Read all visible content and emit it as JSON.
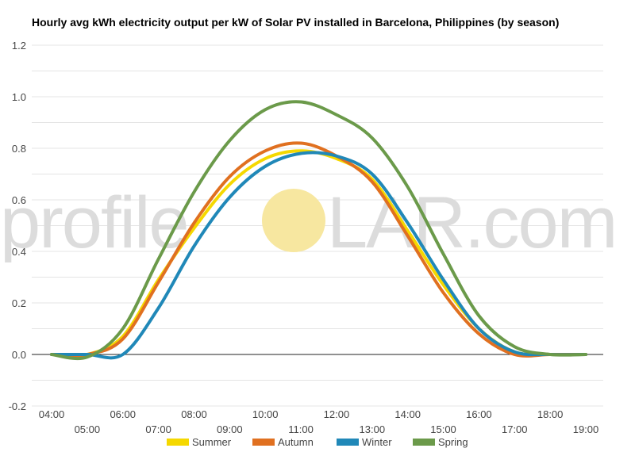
{
  "chart_data": {
    "type": "line",
    "title": "Hourly avg kWh electricity output per kW of Solar PV installed in Barcelona, Philippines (by season)",
    "xlabel": "",
    "ylabel": "",
    "ylim": [
      -0.2,
      1.2
    ],
    "yticks": [
      "-0.2",
      "0.0",
      "0.2",
      "0.4",
      "0.6",
      "0.8",
      "1.0",
      "1.2"
    ],
    "x": [
      4,
      5,
      6,
      7,
      8,
      9,
      10,
      11,
      12,
      13,
      14,
      15,
      16,
      17,
      18,
      19
    ],
    "x_labels_upper": [
      "04:00",
      "06:00",
      "08:00",
      "10:00",
      "12:00",
      "14:00",
      "16:00",
      "18:00"
    ],
    "x_labels_lower": [
      "05:00",
      "07:00",
      "09:00",
      "11:00",
      "13:00",
      "15:00",
      "17:00",
      "19:00"
    ],
    "grid": true,
    "legend_position": "bottom",
    "watermark": {
      "left": "profile",
      "right": "LAR.com",
      "sun_color": "#f7e7a0"
    },
    "series": [
      {
        "name": "Summer",
        "color": "#f5d800",
        "values": [
          0.0,
          0.0,
          0.07,
          0.29,
          0.49,
          0.66,
          0.76,
          0.79,
          0.76,
          0.68,
          0.48,
          0.27,
          0.1,
          0.01,
          0.0,
          0.0
        ]
      },
      {
        "name": "Autumn",
        "color": "#e07020",
        "values": [
          0.0,
          0.0,
          0.06,
          0.28,
          0.51,
          0.69,
          0.79,
          0.82,
          0.77,
          0.67,
          0.46,
          0.24,
          0.08,
          0.0,
          0.0,
          0.0
        ]
      },
      {
        "name": "Winter",
        "color": "#2088b8",
        "values": [
          0.0,
          0.0,
          0.0,
          0.18,
          0.42,
          0.61,
          0.73,
          0.78,
          0.77,
          0.7,
          0.51,
          0.29,
          0.1,
          0.01,
          0.0,
          0.0
        ]
      },
      {
        "name": "Spring",
        "color": "#6b9a4a",
        "values": [
          0.0,
          -0.01,
          0.1,
          0.37,
          0.63,
          0.83,
          0.95,
          0.98,
          0.93,
          0.84,
          0.65,
          0.39,
          0.15,
          0.03,
          0.0,
          0.0
        ]
      }
    ]
  }
}
